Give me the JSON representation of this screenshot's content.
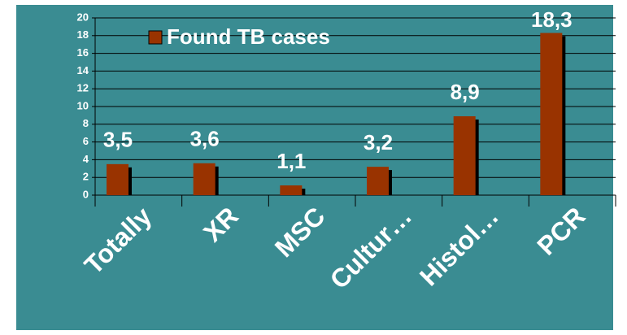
{
  "chart_data": {
    "type": "bar",
    "categories": [
      "Totally",
      "XR",
      "MSC",
      "Cultur…",
      "Histol…",
      "PCR"
    ],
    "series": [
      {
        "name": "Found TB cases",
        "color": "#993300",
        "values": [
          3.5,
          3.6,
          1.1,
          3.2,
          8.9,
          18.3
        ],
        "value_labels": [
          "3,5",
          "3,6",
          "1,1",
          "3,2",
          "8,9",
          "18,3"
        ]
      }
    ],
    "ylim": [
      0,
      20
    ],
    "yticks": [
      0,
      2,
      4,
      6,
      8,
      10,
      12,
      14,
      16,
      18,
      20
    ],
    "grid": true,
    "legend": "top-left"
  }
}
